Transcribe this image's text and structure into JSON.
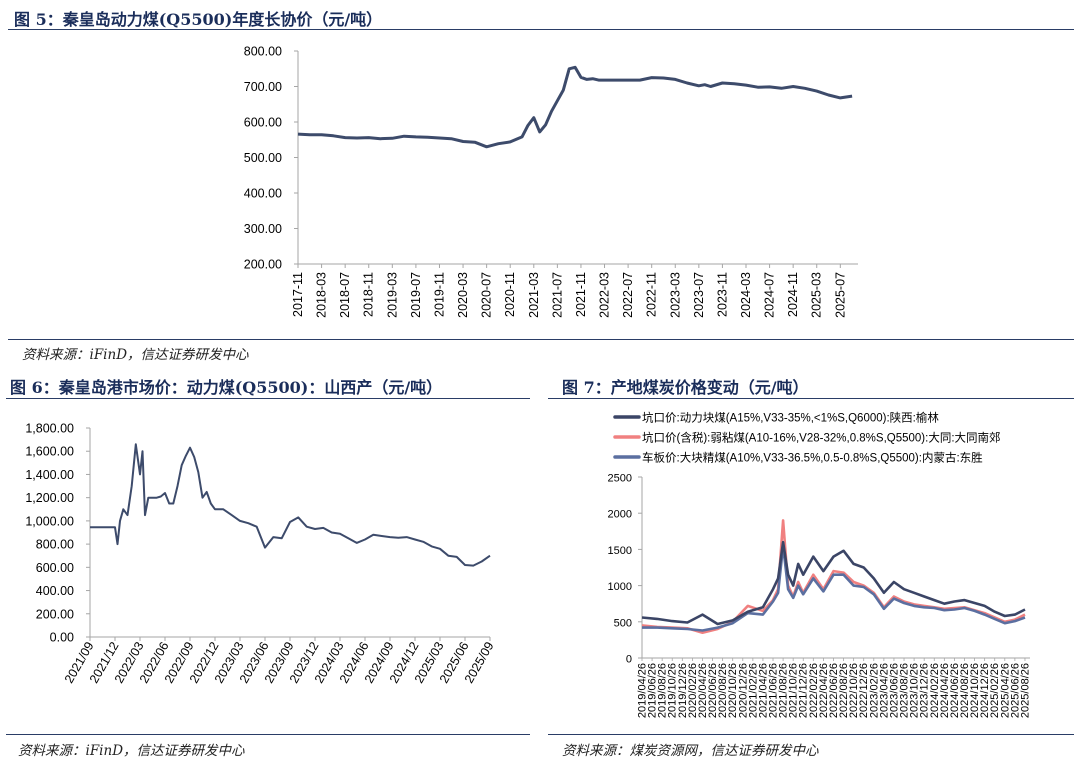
{
  "fig5": {
    "title": "图 5：秦皇岛动力煤(Q5500)年度长协价（元/吨）",
    "source": "资料来源：iFinD，信达证券研发中心"
  },
  "fig6": {
    "title": "图 6：秦皇岛港市场价：动力煤(Q5500)：山西产（元/吨）",
    "source": "资料来源：iFinD，信达证券研发中心"
  },
  "fig7": {
    "title": "图 7：产地煤炭价格变动（元/吨）",
    "source": "资料来源：煤炭资源网，信达证券研发中心"
  },
  "chart_data": [
    {
      "type": "line",
      "title": "",
      "xlabel": "",
      "ylabel": "",
      "ylim": [
        200,
        800
      ],
      "yticks": [
        "800.00",
        "700.00",
        "600.00",
        "500.00",
        "400.00",
        "300.00",
        "200.00"
      ],
      "xticks": [
        "2017-11",
        "2018-03",
        "2018-07",
        "2018-11",
        "2019-03",
        "2019-07",
        "2019-11",
        "2020-03",
        "2020-07",
        "2020-11",
        "2021-03",
        "2021-07",
        "2021-11",
        "2022-03",
        "2022-07",
        "2022-11",
        "2023-03",
        "2023-07",
        "2023-11",
        "2024-03",
        "2024-07",
        "2024-11",
        "2025-03",
        "2025-07"
      ],
      "grid": false,
      "color": "#3d4b6b",
      "series": [
        {
          "x": [
            "2017-11",
            "2018-01",
            "2018-03",
            "2018-05",
            "2018-07",
            "2018-09",
            "2018-11",
            "2019-01",
            "2019-03",
            "2019-05",
            "2019-07",
            "2019-09",
            "2019-11",
            "2020-01",
            "2020-03",
            "2020-05",
            "2020-07",
            "2020-09",
            "2020-11",
            "2021-01",
            "2021-02",
            "2021-03",
            "2021-04",
            "2021-05",
            "2021-06",
            "2021-07",
            "2021-08",
            "2021-09",
            "2021-10",
            "2021-11",
            "2021-12",
            "2022-01",
            "2022-02",
            "2022-03",
            "2022-05",
            "2022-07",
            "2022-09",
            "2022-11",
            "2023-01",
            "2023-03",
            "2023-05",
            "2023-07",
            "2023-08",
            "2023-09",
            "2023-11",
            "2024-01",
            "2024-03",
            "2024-05",
            "2024-07",
            "2024-09",
            "2024-11",
            "2025-01",
            "2025-03",
            "2025-05",
            "2025-07",
            "2025-09"
          ],
          "values": [
            566,
            564,
            564,
            561,
            556,
            555,
            556,
            553,
            554,
            560,
            558,
            557,
            555,
            553,
            545,
            543,
            530,
            539,
            544,
            558,
            590,
            612,
            572,
            592,
            630,
            660,
            690,
            750,
            754,
            726,
            720,
            722,
            718,
            718,
            718,
            718,
            718,
            725,
            724,
            720,
            710,
            702,
            705,
            700,
            710,
            708,
            704,
            698,
            699,
            695,
            700,
            695,
            687,
            676,
            668,
            673
          ]
        }
      ]
    },
    {
      "type": "line",
      "title": "",
      "xlabel": "",
      "ylabel": "",
      "ylim": [
        0,
        1800
      ],
      "yticks": [
        "1,800.00",
        "1,600.00",
        "1,400.00",
        "1,200.00",
        "1,000.00",
        "800.00",
        "600.00",
        "400.00",
        "200.00",
        "0.00"
      ],
      "xticks": [
        "2021/09",
        "2021/12",
        "2022/03",
        "2022/06",
        "2022/09",
        "2022/12",
        "2023/03",
        "2023/06",
        "2023/09",
        "2023/12",
        "2024/03",
        "2024/06",
        "2024/09",
        "2024/12",
        "2025/03",
        "2025/06",
        "2025/09"
      ],
      "grid": false,
      "color": "#3d4b6b",
      "series": [
        {
          "x": [
            "2021-09",
            "2021-10",
            "2021-11",
            "2021-12",
            "2021-12.3",
            "2021-12.6",
            "2022-01",
            "2022-01.5",
            "2022-02",
            "2022-02.5",
            "2022-03",
            "2022-03.3",
            "2022-03.6",
            "2022-04",
            "2022-04.5",
            "2022-05",
            "2022-05.5",
            "2022-06",
            "2022-06.5",
            "2022-07",
            "2022-07.5",
            "2022-08",
            "2022-08.5",
            "2022-09",
            "2022-09.5",
            "2022-10",
            "2022-10.5",
            "2022-11",
            "2022-11.5",
            "2022-12",
            "2023-01",
            "2023-02",
            "2023-03",
            "2023-04",
            "2023-05",
            "2023-06",
            "2023-07",
            "2023-08",
            "2023-09",
            "2023-10",
            "2023-11",
            "2023-12",
            "2024-01",
            "2024-02",
            "2024-03",
            "2024-04",
            "2024-05",
            "2024-06",
            "2024-07",
            "2024-08",
            "2024-09",
            "2024-10",
            "2024-11",
            "2024-12",
            "2025-01",
            "2025-02",
            "2025-03",
            "2025-04",
            "2025-05",
            "2025-06",
            "2025-07",
            "2025-08",
            "2025-09"
          ],
          "values": [
            945,
            945,
            945,
            945,
            800,
            1000,
            1100,
            1050,
            1300,
            1660,
            1400,
            1600,
            1050,
            1200,
            1200,
            1200,
            1210,
            1240,
            1150,
            1150,
            1300,
            1480,
            1560,
            1630,
            1550,
            1420,
            1200,
            1250,
            1150,
            1100,
            1100,
            1050,
            1000,
            980,
            950,
            770,
            860,
            850,
            990,
            1030,
            950,
            930,
            940,
            900,
            890,
            850,
            810,
            840,
            880,
            870,
            860,
            855,
            860,
            840,
            820,
            780,
            760,
            700,
            690,
            620,
            615,
            650,
            700
          ]
        }
      ]
    },
    {
      "type": "line",
      "title": "",
      "xlabel": "",
      "ylabel": "",
      "ylim": [
        0,
        2500
      ],
      "yticks": [
        "2500",
        "2000",
        "1500",
        "1000",
        "500",
        "0"
      ],
      "xticks": [
        "2019/04/26",
        "2019/08/26",
        "2019/12/26",
        "2020/04/26",
        "2020/08/26",
        "2020/12/26",
        "2021/04/26",
        "2021/08/26",
        "2021/12/26",
        "2022/04/26",
        "2022/08/26",
        "2022/12/26",
        "2023/04/26",
        "2023/08/26",
        "2023/12/26",
        "2024/04/26",
        "2024/08/26",
        "2024/12/26",
        "2025/04/26",
        "2025/08/26",
        "2019/06/26",
        "2019/10/26",
        "2020/02/26",
        "2020/06/26",
        "2020/10/26",
        "2021/02/26",
        "2021/06/26",
        "2021/10/26",
        "2022/02/26",
        "2022/06/26",
        "2022/10/26",
        "2023/02/26",
        "2023/06/26",
        "2023/10/26",
        "2024/02/26",
        "2024/06/26",
        "2024/10/26",
        "2025/02/26",
        "2025/06/26"
      ],
      "legend_position": "top-left",
      "grid": false,
      "series": [
        {
          "name": "坑口价:动力块煤(A15%,V33-35%,<1%S,Q6000):陕西:榆林",
          "color": "#3b4566",
          "x": [
            "2019-04",
            "2019-07",
            "2019-10",
            "2020-01",
            "2020-04",
            "2020-07",
            "2020-10",
            "2021-01",
            "2021-04",
            "2021-06",
            "2021-07",
            "2021-08",
            "2021-09",
            "2021-10",
            "2021-11",
            "2021-12",
            "2022-02",
            "2022-04",
            "2022-06",
            "2022-08",
            "2022-10",
            "2022-12",
            "2023-02",
            "2023-04",
            "2023-06",
            "2023-08",
            "2023-10",
            "2023-12",
            "2024-02",
            "2024-04",
            "2024-06",
            "2024-08",
            "2024-10",
            "2024-12",
            "2025-02",
            "2025-04",
            "2025-06",
            "2025-08"
          ],
          "values": [
            560,
            540,
            510,
            490,
            600,
            470,
            520,
            640,
            700,
            950,
            1100,
            1600,
            1150,
            1000,
            1300,
            1150,
            1400,
            1200,
            1400,
            1480,
            1300,
            1250,
            1100,
            900,
            1050,
            950,
            900,
            850,
            800,
            750,
            780,
            800,
            760,
            720,
            640,
            580,
            600,
            670
          ]
        },
        {
          "name": "坑口价(含税):弱粘煤(A10-16%,V28-32%,0.8%S,Q5500):大同:大同南郊",
          "color": "#f08080",
          "x": [
            "2019-04",
            "2019-07",
            "2019-10",
            "2020-01",
            "2020-04",
            "2020-07",
            "2020-10",
            "2021-01",
            "2021-04",
            "2021-06",
            "2021-07",
            "2021-08",
            "2021-09",
            "2021-10",
            "2021-11",
            "2021-12",
            "2022-02",
            "2022-04",
            "2022-06",
            "2022-08",
            "2022-10",
            "2022-12",
            "2023-02",
            "2023-04",
            "2023-06",
            "2023-08",
            "2023-10",
            "2023-12",
            "2024-02",
            "2024-04",
            "2024-06",
            "2024-08",
            "2024-10",
            "2024-12",
            "2025-02",
            "2025-04",
            "2025-06",
            "2025-08"
          ],
          "values": [
            450,
            430,
            420,
            410,
            350,
            400,
            500,
            720,
            650,
            800,
            950,
            1900,
            1000,
            850,
            1050,
            900,
            1150,
            950,
            1200,
            1180,
            1050,
            1000,
            900,
            700,
            850,
            780,
            740,
            720,
            700,
            680,
            690,
            700,
            660,
            620,
            560,
            500,
            530,
            600
          ]
        },
        {
          "name": "车板价:大块精煤(A10%,V33-36.5%,0.5-0.8%S,Q5500):内蒙古:东胜",
          "color": "#5b6fa0",
          "x": [
            "2019-04",
            "2019-07",
            "2019-10",
            "2020-01",
            "2020-04",
            "2020-07",
            "2020-10",
            "2021-01",
            "2021-04",
            "2021-06",
            "2021-07",
            "2021-08",
            "2021-09",
            "2021-10",
            "2021-11",
            "2021-12",
            "2022-02",
            "2022-04",
            "2022-06",
            "2022-08",
            "2022-10",
            "2022-12",
            "2023-02",
            "2023-04",
            "2023-06",
            "2023-08",
            "2023-10",
            "2023-12",
            "2024-02",
            "2024-04",
            "2024-06",
            "2024-08",
            "2024-10",
            "2024-12",
            "2025-02",
            "2025-04",
            "2025-06",
            "2025-08"
          ],
          "values": [
            420,
            420,
            410,
            400,
            380,
            420,
            480,
            620,
            600,
            780,
            900,
            1550,
            950,
            830,
            1000,
            880,
            1100,
            920,
            1150,
            1150,
            1000,
            980,
            880,
            680,
            820,
            760,
            720,
            700,
            690,
            660,
            670,
            690,
            650,
            600,
            540,
            480,
            510,
            560
          ]
        }
      ]
    }
  ]
}
